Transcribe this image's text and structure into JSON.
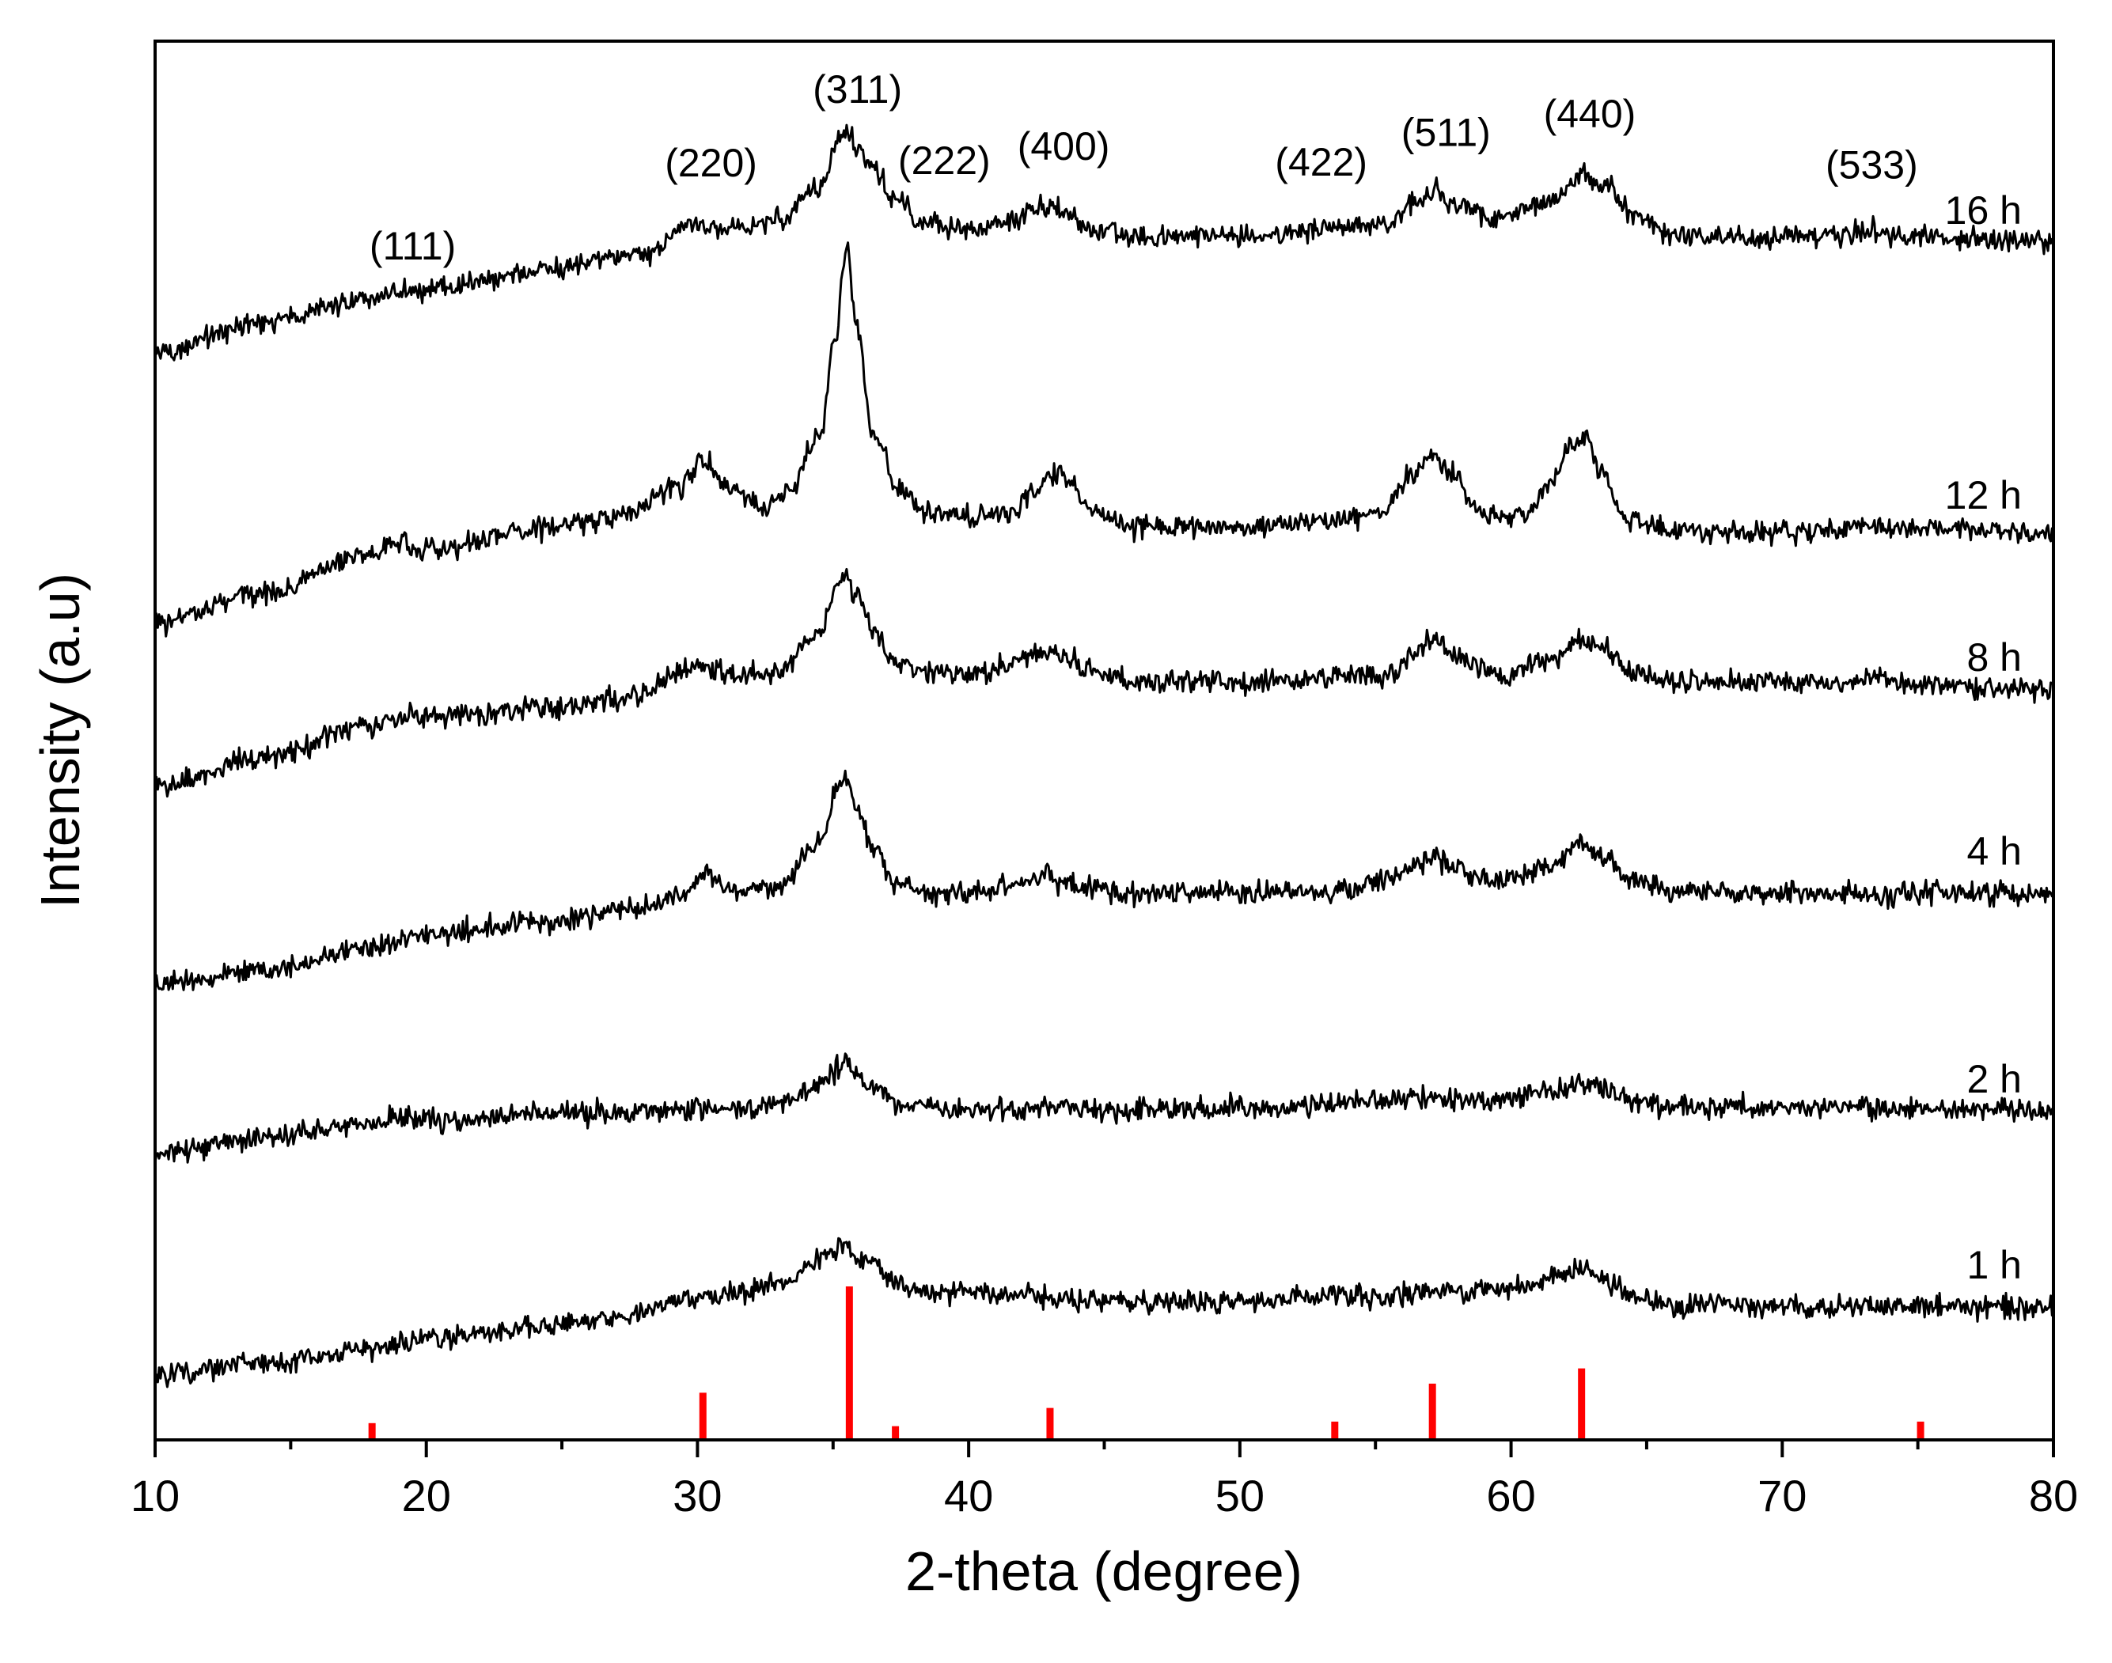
{
  "chart_data": {
    "type": "line",
    "title": "",
    "xlabel": "2-theta (degree)",
    "ylabel": "Intensity (a.u)",
    "xlim": [
      10,
      80
    ],
    "xticks": [
      10,
      20,
      30,
      40,
      50,
      60,
      70,
      80
    ],
    "yticks_shown": false,
    "grid": false,
    "legend": "none",
    "line_color": "#000000",
    "reference_color": "#ff0000",
    "peak_labels": [
      {
        "text": "(111)",
        "x": 19.5
      },
      {
        "text": "(220)",
        "x": 30.5
      },
      {
        "text": "(311)",
        "x": 35.9
      },
      {
        "text": "(222)",
        "x": 39.1
      },
      {
        "text": "(400)",
        "x": 43.5
      },
      {
        "text": "(422)",
        "x": 53.0
      },
      {
        "text": "(511)",
        "x": 57.6
      },
      {
        "text": "(440)",
        "x": 62.9
      },
      {
        "text": "(533)",
        "x": 73.3
      }
    ],
    "series": [
      {
        "name": "16 h",
        "x": [
          10,
          14,
          18,
          19,
          20,
          24,
          28,
          29.5,
          30.3,
          31.2,
          33,
          34.5,
          35.3,
          35.5,
          35.8,
          36.5,
          37.3,
          38.5,
          40,
          41.5,
          42.4,
          43,
          43.6,
          44.8,
          46,
          50,
          54,
          55.5,
          56.5,
          57.2,
          58,
          59.5,
          61.5,
          62.6,
          63.5,
          64.5,
          66,
          72,
          73.3,
          74.5,
          80
        ],
        "y": [
          -0.28,
          0.01,
          0.23,
          0.31,
          0.3,
          0.48,
          0.64,
          0.91,
          0.89,
          0.87,
          0.97,
          1.3,
          1.72,
          1.82,
          1.67,
          1.42,
          1.15,
          0.93,
          0.88,
          0.94,
          1.06,
          1.09,
          1.04,
          0.85,
          0.81,
          0.81,
          0.91,
          0.93,
          1.13,
          1.25,
          1.1,
          0.97,
          1.14,
          1.37,
          1.28,
          1.01,
          0.81,
          0.81,
          0.87,
          0.8,
          0.76
        ]
      },
      {
        "name": "12 h",
        "x": [
          10,
          14,
          18,
          19,
          20,
          24,
          27,
          29.3,
          30.2,
          31.2,
          32.5,
          33.5,
          34.5,
          35.1,
          35.5,
          35.9,
          36.5,
          37.5,
          38.5,
          40,
          41.5,
          42.5,
          43,
          43.6,
          44.6,
          46,
          50,
          53,
          55,
          56.5,
          57.1,
          57.8,
          59,
          60.5,
          61.5,
          62.2,
          62.7,
          63.3,
          64.2,
          65.5,
          70,
          74,
          80
        ],
        "y": [
          -0.13,
          0.17,
          0.54,
          0.62,
          0.56,
          0.75,
          0.86,
          1.15,
          1.39,
          1.15,
          0.95,
          1.15,
          1.64,
          2.55,
          3.4,
          2.6,
          1.62,
          1.12,
          0.92,
          0.86,
          0.91,
          1.13,
          1.29,
          1.22,
          0.92,
          0.78,
          0.78,
          0.83,
          0.9,
          1.29,
          1.45,
          1.26,
          0.9,
          0.88,
          1.2,
          1.54,
          1.66,
          1.32,
          0.86,
          0.75,
          0.73,
          0.78,
          0.72
        ]
      },
      {
        "name": "8 h",
        "x": [
          10,
          14,
          18,
          19,
          20,
          24,
          28,
          29.5,
          30.2,
          31.2,
          33,
          34.5,
          35.2,
          35.5,
          35.8,
          36.5,
          37.3,
          38.5,
          40,
          41.5,
          42.5,
          43,
          43.6,
          44.8,
          46,
          50,
          54,
          55.5,
          56.5,
          57.2,
          58,
          59.5,
          61.5,
          62.6,
          63.5,
          64.5,
          66,
          72,
          73.3,
          74.5,
          80
        ],
        "y": [
          -0.13,
          0.15,
          0.45,
          0.54,
          0.52,
          0.61,
          0.73,
          0.97,
          1.0,
          0.93,
          0.95,
          1.32,
          1.78,
          1.86,
          1.68,
          1.32,
          1.03,
          0.94,
          0.94,
          1.02,
          1.12,
          1.14,
          1.08,
          0.93,
          0.86,
          0.86,
          0.91,
          0.93,
          1.15,
          1.26,
          1.1,
          0.92,
          1.07,
          1.25,
          1.16,
          0.96,
          0.87,
          0.85,
          0.9,
          0.84,
          0.78
        ]
      },
      {
        "name": "4 h",
        "x": [
          10,
          14,
          18,
          20,
          24,
          28,
          29.5,
          30.3,
          31.2,
          33,
          34.5,
          35.2,
          35.5,
          35.8,
          36.5,
          37.3,
          38.5,
          40,
          41.5,
          42.5,
          42.9,
          43.2,
          44,
          46,
          50,
          54,
          55.5,
          56.5,
          57.1,
          58,
          59.5,
          61.5,
          62.5,
          63.5,
          64.5,
          66,
          72,
          80
        ],
        "y": [
          -0.07,
          0.09,
          0.3,
          0.42,
          0.52,
          0.66,
          0.78,
          0.98,
          0.84,
          0.86,
          1.26,
          1.81,
          1.9,
          1.66,
          1.2,
          0.88,
          0.8,
          0.81,
          0.87,
          0.9,
          1.01,
          0.92,
          0.86,
          0.81,
          0.8,
          0.83,
          0.93,
          1.08,
          1.15,
          1.01,
          0.9,
          1.05,
          1.24,
          1.13,
          0.93,
          0.83,
          0.79,
          0.79
        ]
      },
      {
        "name": "2 h",
        "x": [
          10,
          14,
          18,
          19,
          20,
          24,
          28,
          30,
          31.5,
          33,
          34.5,
          35.4,
          36.3,
          37.5,
          39,
          41,
          43,
          45,
          50,
          54,
          57,
          59,
          61.5,
          62.5,
          63.5,
          65,
          70,
          80
        ],
        "y": [
          -0.15,
          0.02,
          0.15,
          0.2,
          0.18,
          0.22,
          0.25,
          0.3,
          0.28,
          0.33,
          0.52,
          0.71,
          0.5,
          0.32,
          0.3,
          0.28,
          0.31,
          0.27,
          0.29,
          0.34,
          0.38,
          0.36,
          0.45,
          0.54,
          0.45,
          0.32,
          0.3,
          0.28
        ]
      },
      {
        "name": "1 h",
        "x": [
          10,
          14,
          18,
          20,
          24,
          27,
          29.5,
          31,
          33,
          34.5,
          35.4,
          36.3,
          37.5,
          39,
          40.2,
          41.5,
          44,
          47,
          50,
          54,
          58,
          60.5,
          62,
          62.7,
          63.5,
          64.5,
          66,
          70,
          80
        ],
        "y": [
          0.0,
          0.11,
          0.25,
          0.33,
          0.45,
          0.53,
          0.71,
          0.76,
          0.85,
          1.07,
          1.21,
          1.05,
          0.83,
          0.75,
          0.8,
          0.74,
          0.7,
          0.69,
          0.69,
          0.73,
          0.78,
          0.84,
          0.94,
          1.01,
          0.9,
          0.73,
          0.66,
          0.64,
          0.64
        ]
      }
    ],
    "reference_pattern": {
      "x": [
        18.0,
        30.2,
        35.6,
        37.3,
        43.0,
        53.5,
        57.1,
        62.6,
        75.1
      ],
      "y": [
        10,
        30,
        100,
        8,
        20,
        11,
        36,
        46,
        11
      ]
    }
  }
}
